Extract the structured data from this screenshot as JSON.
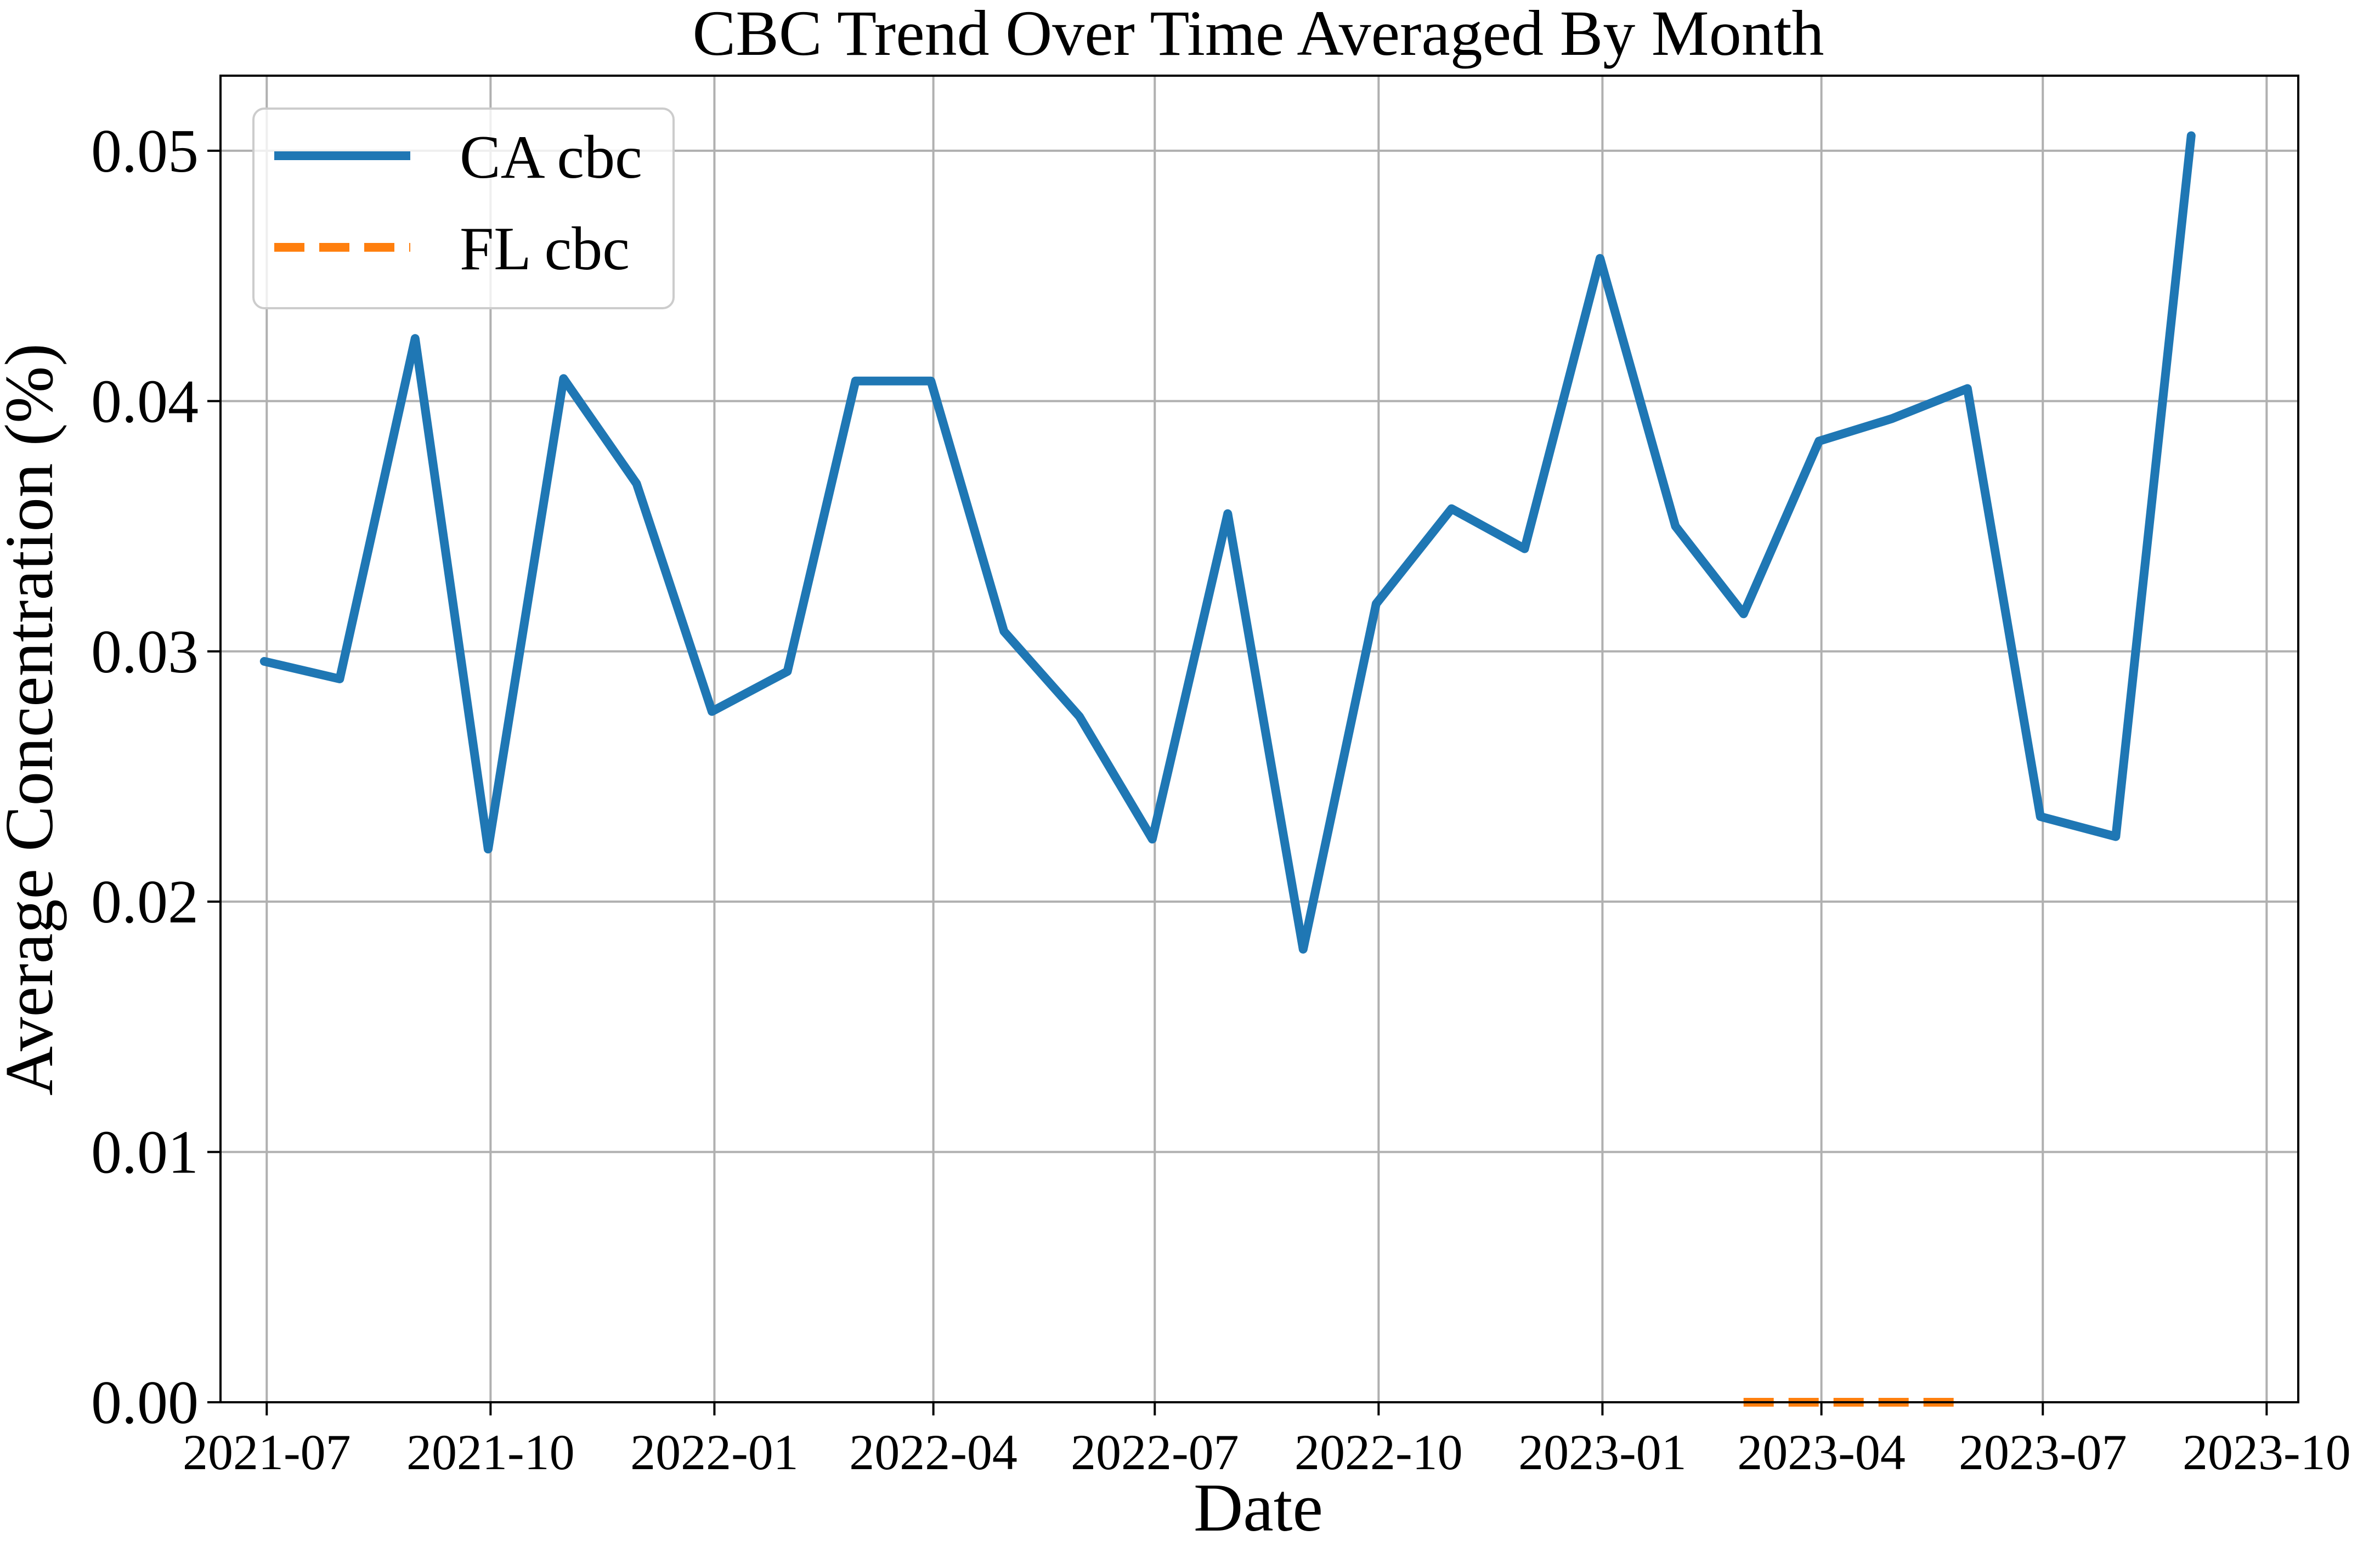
{
  "chart_data": {
    "type": "line",
    "title": "CBC Trend Over Time Averaged By Month",
    "xlabel": "Date",
    "ylabel": "Average Concentration (%)",
    "xlim": [
      "2021-06-12",
      "2023-10-14"
    ],
    "ylim": [
      0.0,
      0.053
    ],
    "x_ticks": [
      "2021-07",
      "2021-10",
      "2022-01",
      "2022-04",
      "2022-07",
      "2022-10",
      "2023-01",
      "2023-04",
      "2023-07",
      "2023-10"
    ],
    "y_ticks": [
      "0.00",
      "0.01",
      "0.02",
      "0.03",
      "0.04",
      "0.05"
    ],
    "grid": true,
    "legend_position": "top-left",
    "series": [
      {
        "name": "CA cbc",
        "color": "#1f77b4",
        "style": "solid",
        "x": [
          "2021-06-30",
          "2021-07-31",
          "2021-08-31",
          "2021-09-30",
          "2021-10-31",
          "2021-11-30",
          "2021-12-31",
          "2022-01-31",
          "2022-02-28",
          "2022-03-31",
          "2022-04-30",
          "2022-05-31",
          "2022-06-30",
          "2022-07-31",
          "2022-08-31",
          "2022-09-30",
          "2022-10-31",
          "2022-11-30",
          "2022-12-31",
          "2023-01-31",
          "2023-02-28",
          "2023-03-31",
          "2023-04-30",
          "2023-05-31",
          "2023-06-30",
          "2023-07-31",
          "2023-08-31"
        ],
        "values": [
          0.0296,
          0.0289,
          0.0425,
          0.0221,
          0.0409,
          0.0367,
          0.0276,
          0.0292,
          0.0408,
          0.0408,
          0.0308,
          0.0274,
          0.0225,
          0.0355,
          0.0181,
          0.0319,
          0.0357,
          0.0341,
          0.0457,
          0.035,
          0.0315,
          0.0384,
          0.0393,
          0.0405,
          0.0234,
          0.0226,
          0.0506
        ]
      },
      {
        "name": "FL cbc",
        "color": "#ff7f0e",
        "style": "dashed",
        "x": [
          "2023-02-28",
          "2023-03-31",
          "2023-04-30",
          "2023-05-31"
        ],
        "values": [
          0.0,
          0.0,
          0.0,
          0.0
        ]
      }
    ]
  }
}
